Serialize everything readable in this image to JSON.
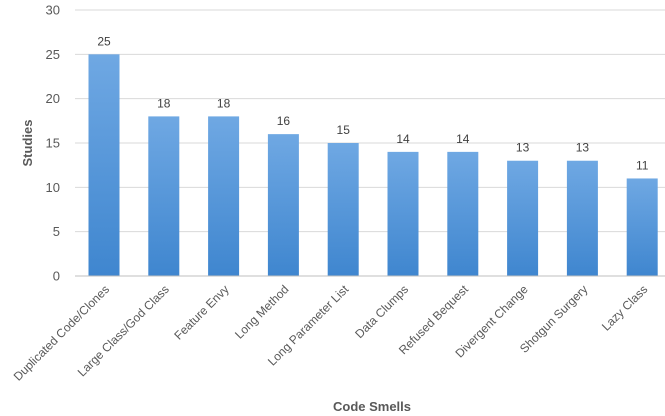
{
  "chart_data": {
    "type": "bar",
    "categories": [
      "Duplicated Code/Clones",
      "Large Class/God Class",
      "Feature Envy",
      "Long Method",
      "Long Parameter List",
      "Data Clumps",
      "Refused Bequest",
      "Divergent Change",
      "Shotgun Surgery",
      "Lazy Class"
    ],
    "values": [
      25,
      18,
      18,
      16,
      15,
      14,
      14,
      13,
      13,
      11
    ],
    "xlabel": "Code Smells",
    "ylabel": "Studies",
    "ylim": [
      0,
      30
    ],
    "yticks": [
      0,
      5,
      10,
      15,
      20,
      25,
      30
    ],
    "grid": true,
    "legend": "none",
    "colors": {
      "bar_top": "#6fa8e3",
      "bar_bottom": "#3f86cf"
    }
  }
}
